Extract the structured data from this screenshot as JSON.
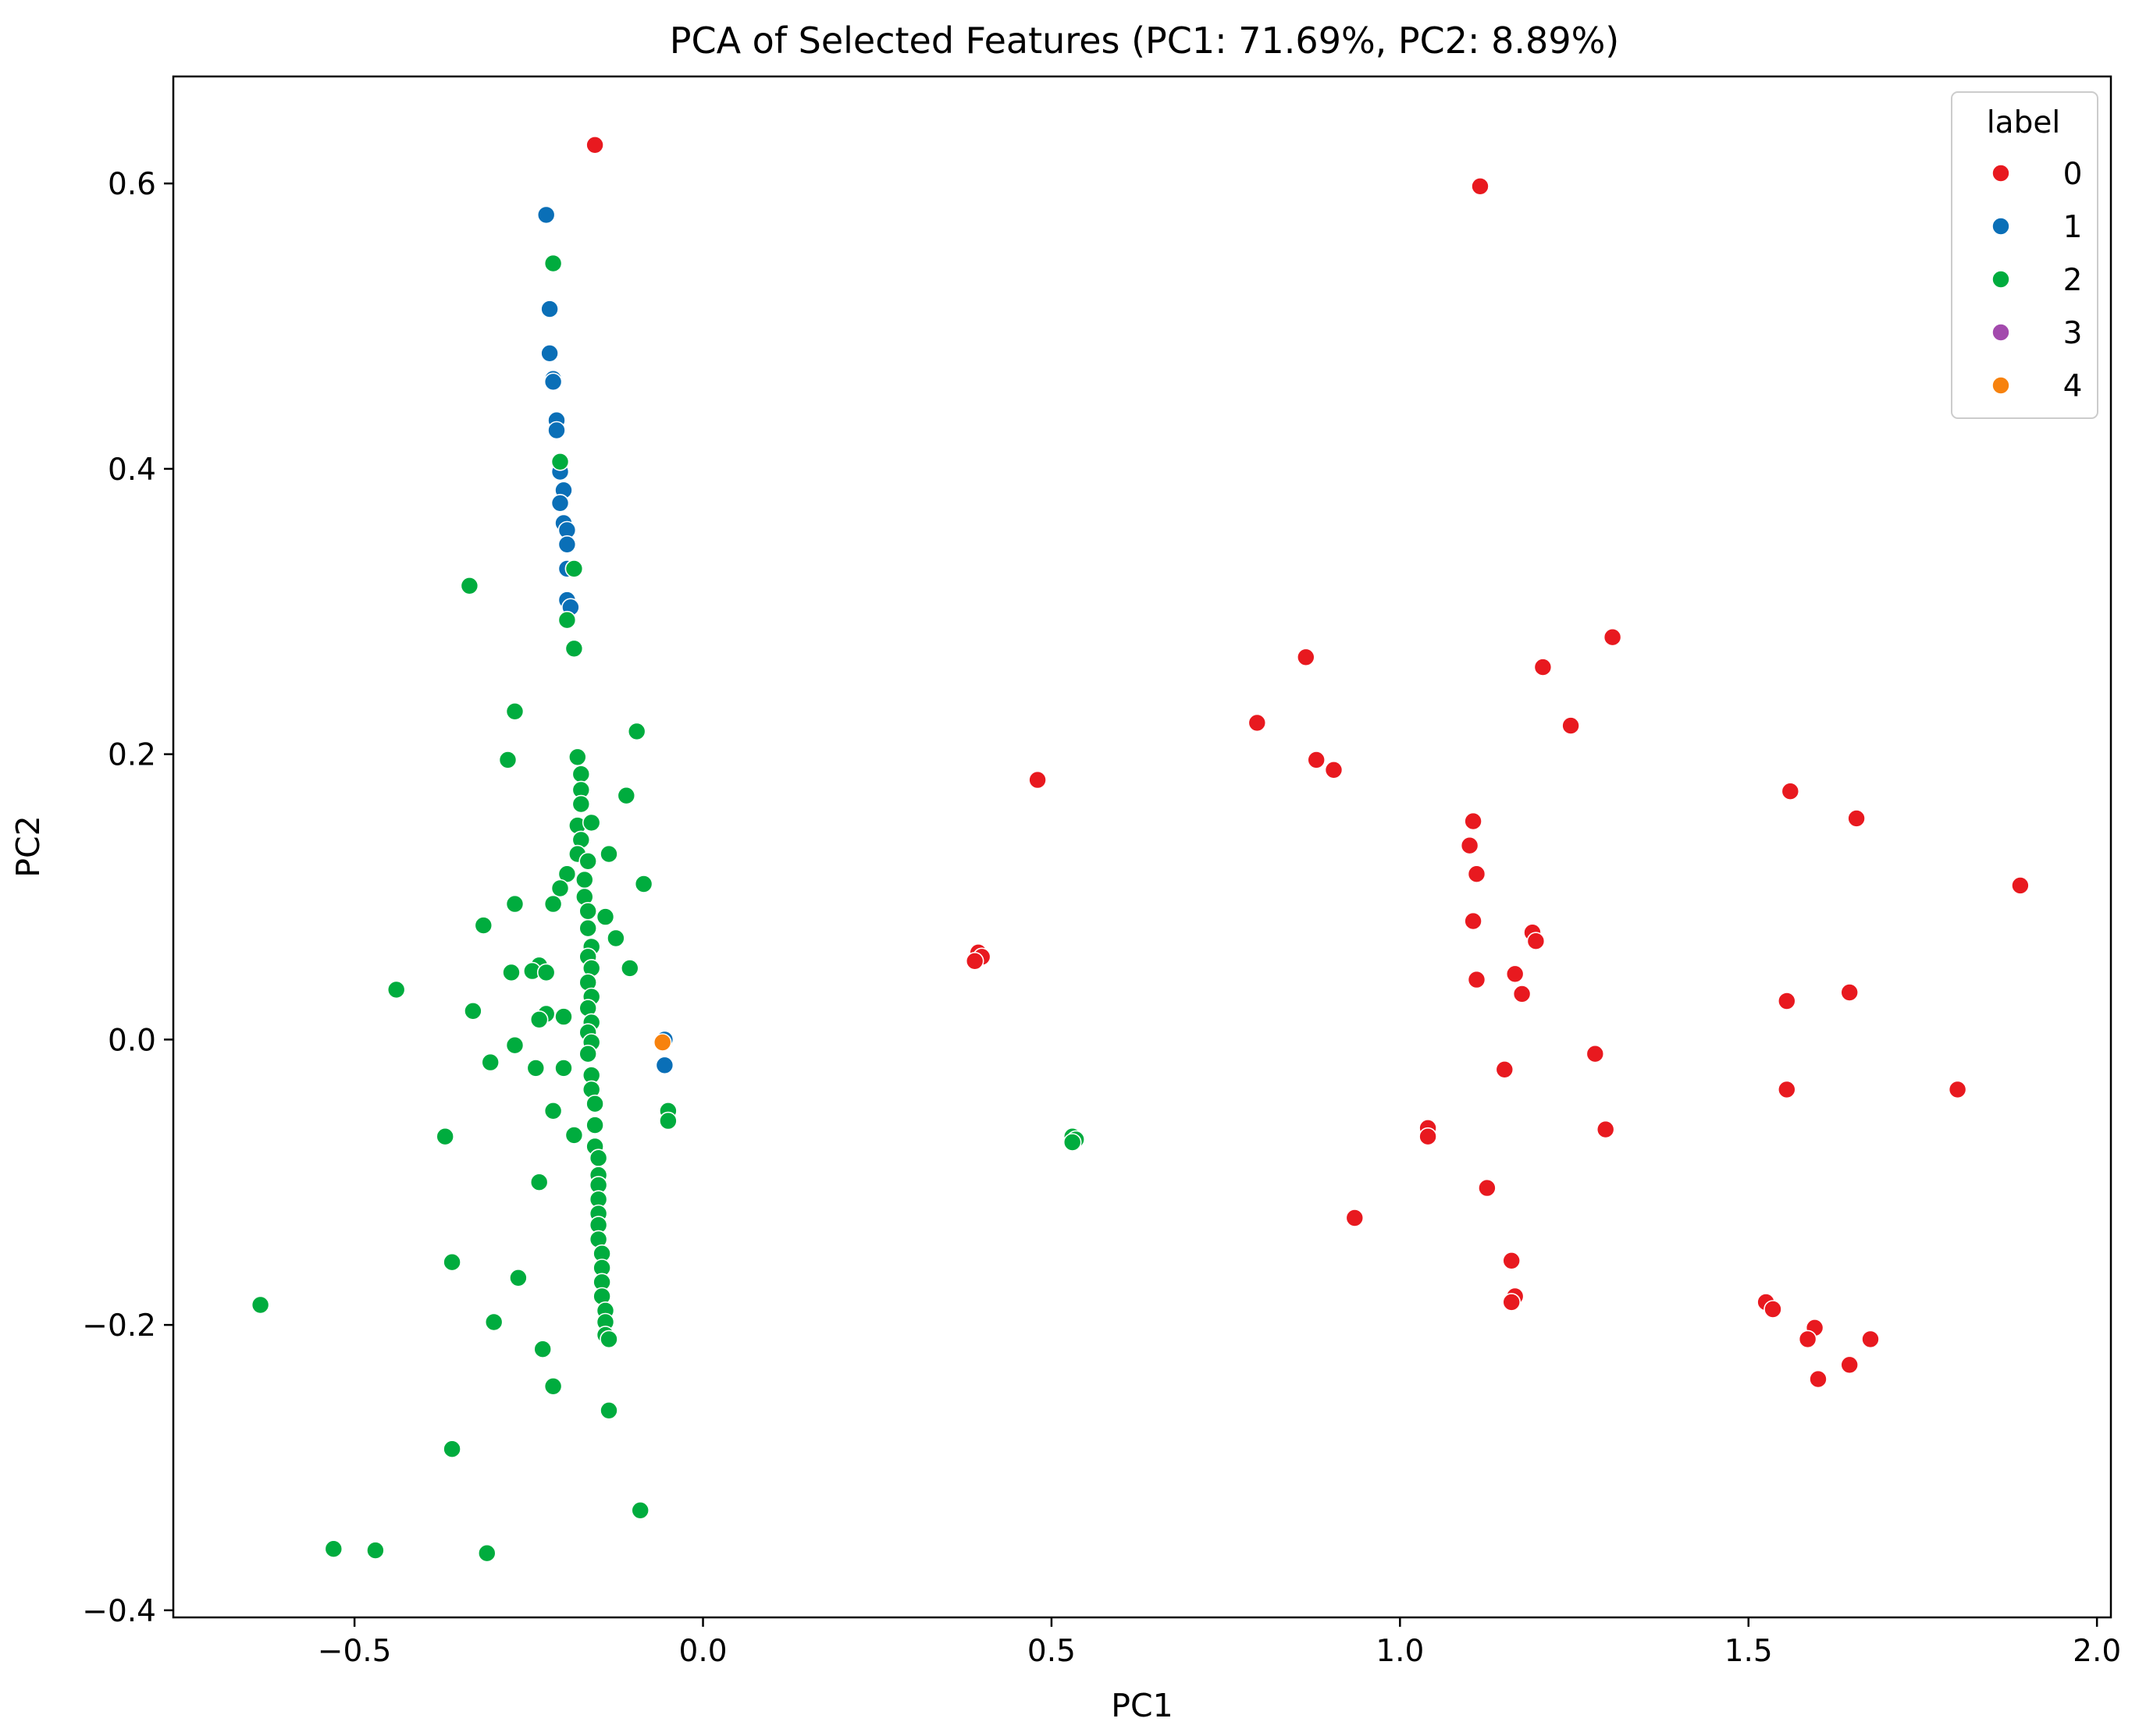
{
  "chart_data": {
    "type": "scatter",
    "title": "PCA of Selected Features (PC1: 71.69%, PC2: 8.89%)",
    "xlabel": "PC1",
    "ylabel": "PC2",
    "xlim": [
      -0.76,
      2.02
    ],
    "ylim": [
      -0.405,
      0.675
    ],
    "xticks": [
      -0.5,
      0.0,
      0.5,
      1.0,
      1.5,
      2.0
    ],
    "xtick_labels": [
      "−0.5",
      "0.0",
      "0.5",
      "1.0",
      "1.5",
      "2.0"
    ],
    "yticks": [
      -0.4,
      -0.2,
      0.0,
      0.2,
      0.4,
      0.6
    ],
    "ytick_labels": [
      "−0.4",
      "−0.2",
      "0.0",
      "0.2",
      "0.4",
      "0.6"
    ],
    "grid": false,
    "legend": {
      "title": "label",
      "position": "top-right"
    },
    "series": [
      {
        "name": "0",
        "color": "#e8191f",
        "points": [
          [
            -0.155,
            0.627
          ],
          [
            1.115,
            0.598
          ],
          [
            1.305,
            0.282
          ],
          [
            0.865,
            0.268
          ],
          [
            1.205,
            0.261
          ],
          [
            0.795,
            0.222
          ],
          [
            1.245,
            0.22
          ],
          [
            0.88,
            0.196
          ],
          [
            0.905,
            0.189
          ],
          [
            0.48,
            0.182
          ],
          [
            1.56,
            0.174
          ],
          [
            1.655,
            0.155
          ],
          [
            1.105,
            0.153
          ],
          [
            1.1,
            0.136
          ],
          [
            1.11,
            0.116
          ],
          [
            1.89,
            0.108
          ],
          [
            1.105,
            0.083
          ],
          [
            1.19,
            0.075
          ],
          [
            1.195,
            0.069
          ],
          [
            0.395,
            0.061
          ],
          [
            0.4,
            0.058
          ],
          [
            0.39,
            0.055
          ],
          [
            1.11,
            0.042
          ],
          [
            1.165,
            0.046
          ],
          [
            1.645,
            0.033
          ],
          [
            1.175,
            0.032
          ],
          [
            1.555,
            0.027
          ],
          [
            1.28,
            -0.01
          ],
          [
            1.15,
            -0.021
          ],
          [
            1.555,
            -0.035
          ],
          [
            1.8,
            -0.035
          ],
          [
            1.04,
            -0.062
          ],
          [
            1.04,
            -0.068
          ],
          [
            1.295,
            -0.063
          ],
          [
            1.125,
            -0.104
          ],
          [
            0.935,
            -0.125
          ],
          [
            1.16,
            -0.155
          ],
          [
            1.165,
            -0.18
          ],
          [
            1.16,
            -0.184
          ],
          [
            1.525,
            -0.184
          ],
          [
            1.535,
            -0.189
          ],
          [
            1.595,
            -0.202
          ],
          [
            1.585,
            -0.21
          ],
          [
            1.675,
            -0.21
          ],
          [
            1.645,
            -0.228
          ],
          [
            1.6,
            -0.238
          ]
        ]
      },
      {
        "name": "1",
        "color": "#0a6fb7",
        "points": [
          [
            -0.225,
            0.578
          ],
          [
            -0.22,
            0.512
          ],
          [
            -0.22,
            0.481
          ],
          [
            -0.215,
            0.463
          ],
          [
            -0.215,
            0.461
          ],
          [
            -0.21,
            0.434
          ],
          [
            -0.21,
            0.427
          ],
          [
            -0.205,
            0.398
          ],
          [
            -0.2,
            0.385
          ],
          [
            -0.205,
            0.376
          ],
          [
            -0.2,
            0.362
          ],
          [
            -0.195,
            0.357
          ],
          [
            -0.195,
            0.347
          ],
          [
            -0.195,
            0.33
          ],
          [
            -0.195,
            0.308
          ],
          [
            -0.19,
            0.303
          ],
          [
            -0.055,
            0.0
          ],
          [
            -0.055,
            -0.018
          ]
        ]
      },
      {
        "name": "2",
        "color": "#00ac3e",
        "points": [
          [
            -0.215,
            0.544
          ],
          [
            -0.205,
            0.405
          ],
          [
            -0.185,
            0.33
          ],
          [
            -0.335,
            0.318
          ],
          [
            -0.195,
            0.294
          ],
          [
            -0.185,
            0.274
          ],
          [
            -0.27,
            0.23
          ],
          [
            -0.095,
            0.216
          ],
          [
            -0.28,
            0.196
          ],
          [
            -0.18,
            0.198
          ],
          [
            -0.175,
            0.186
          ],
          [
            -0.175,
            0.175
          ],
          [
            -0.175,
            0.165
          ],
          [
            -0.11,
            0.171
          ],
          [
            -0.18,
            0.15
          ],
          [
            -0.16,
            0.152
          ],
          [
            -0.175,
            0.14
          ],
          [
            -0.135,
            0.13
          ],
          [
            -0.18,
            0.13
          ],
          [
            -0.165,
            0.125
          ],
          [
            -0.195,
            0.116
          ],
          [
            -0.17,
            0.112
          ],
          [
            -0.085,
            0.109
          ],
          [
            -0.205,
            0.106
          ],
          [
            -0.17,
            0.1
          ],
          [
            -0.215,
            0.095
          ],
          [
            -0.27,
            0.095
          ],
          [
            -0.165,
            0.09
          ],
          [
            -0.14,
            0.086
          ],
          [
            -0.315,
            0.08
          ],
          [
            -0.165,
            0.078
          ],
          [
            -0.125,
            0.071
          ],
          [
            -0.16,
            0.065
          ],
          [
            -0.165,
            0.058
          ],
          [
            -0.105,
            0.05
          ],
          [
            -0.16,
            0.05
          ],
          [
            -0.235,
            0.052
          ],
          [
            -0.245,
            0.048
          ],
          [
            -0.275,
            0.047
          ],
          [
            -0.225,
            0.047
          ],
          [
            -0.165,
            0.04
          ],
          [
            -0.44,
            0.035
          ],
          [
            -0.16,
            0.03
          ],
          [
            -0.165,
            0.022
          ],
          [
            -0.33,
            0.02
          ],
          [
            -0.225,
            0.018
          ],
          [
            -0.2,
            0.016
          ],
          [
            -0.235,
            0.014
          ],
          [
            -0.16,
            0.012
          ],
          [
            -0.165,
            0.005
          ],
          [
            -0.16,
            -0.002
          ],
          [
            -0.27,
            -0.004
          ],
          [
            -0.165,
            -0.01
          ],
          [
            -0.305,
            -0.016
          ],
          [
            -0.24,
            -0.02
          ],
          [
            -0.2,
            -0.02
          ],
          [
            -0.16,
            -0.025
          ],
          [
            -0.16,
            -0.035
          ],
          [
            -0.155,
            -0.045
          ],
          [
            -0.05,
            -0.05
          ],
          [
            -0.215,
            -0.05
          ],
          [
            -0.05,
            -0.057
          ],
          [
            -0.155,
            -0.06
          ],
          [
            -0.185,
            -0.067
          ],
          [
            -0.37,
            -0.068
          ],
          [
            -0.155,
            -0.075
          ],
          [
            -0.15,
            -0.083
          ],
          [
            0.53,
            -0.068
          ],
          [
            0.535,
            -0.07
          ],
          [
            0.53,
            -0.072
          ],
          [
            -0.15,
            -0.095
          ],
          [
            -0.15,
            -0.102
          ],
          [
            -0.235,
            -0.1
          ],
          [
            -0.15,
            -0.112
          ],
          [
            -0.15,
            -0.122
          ],
          [
            -0.15,
            -0.13
          ],
          [
            -0.15,
            -0.14
          ],
          [
            -0.145,
            -0.15
          ],
          [
            -0.36,
            -0.156
          ],
          [
            -0.145,
            -0.16
          ],
          [
            -0.145,
            -0.17
          ],
          [
            -0.265,
            -0.167
          ],
          [
            -0.145,
            -0.18
          ],
          [
            -0.14,
            -0.19
          ],
          [
            -0.14,
            -0.198
          ],
          [
            -0.635,
            -0.186
          ],
          [
            -0.3,
            -0.198
          ],
          [
            -0.14,
            -0.207
          ],
          [
            -0.135,
            -0.21
          ],
          [
            -0.23,
            -0.217
          ],
          [
            -0.215,
            -0.243
          ],
          [
            -0.135,
            -0.26
          ],
          [
            -0.36,
            -0.287
          ],
          [
            -0.09,
            -0.33
          ],
          [
            -0.53,
            -0.357
          ],
          [
            -0.47,
            -0.358
          ],
          [
            -0.31,
            -0.36
          ]
        ]
      },
      {
        "name": "3",
        "color": "#a34aad",
        "points": []
      },
      {
        "name": "4",
        "color": "#f7820e",
        "points": [
          [
            -0.058,
            -0.002
          ]
        ]
      }
    ]
  }
}
